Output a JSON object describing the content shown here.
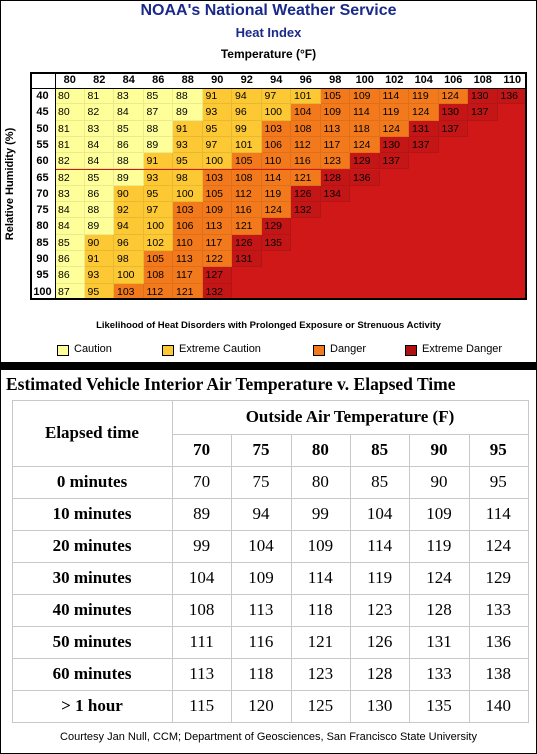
{
  "heat_index": {
    "title": "NOAA's National Weather Service",
    "subtitle": "Heat Index",
    "axis_label": "Temperature (°F)",
    "y_label": "Relative Humidity (%)",
    "temperatures": [
      80,
      82,
      84,
      86,
      88,
      90,
      92,
      94,
      96,
      98,
      100,
      102,
      104,
      106,
      108,
      110
    ],
    "background": "#d01818",
    "rows": [
      {
        "humidity": 40,
        "values": [
          80,
          81,
          83,
          85,
          88,
          91,
          94,
          97,
          101,
          105,
          109,
          114,
          119,
          124,
          130,
          136
        ],
        "colors": [
          "#ffff99",
          "#ffff99",
          "#ffff99",
          "#ffff99",
          "#ffff99",
          "#fcc834",
          "#fcc834",
          "#fcc834",
          "#fcc834",
          "#f27a1c",
          "#f27a1c",
          "#f27a1c",
          "#f27a1c",
          "#f27a1c",
          "#c41616",
          "#c41616"
        ]
      },
      {
        "humidity": 45,
        "values": [
          80,
          82,
          84,
          87,
          89,
          93,
          96,
          100,
          104,
          109,
          114,
          119,
          124,
          130,
          137
        ],
        "colors": [
          "#ffff99",
          "#ffff99",
          "#ffff99",
          "#ffff99",
          "#ffff99",
          "#fcc834",
          "#fcc834",
          "#fcc834",
          "#f27a1c",
          "#f27a1c",
          "#f27a1c",
          "#f27a1c",
          "#f27a1c",
          "#c41616",
          "#c41616"
        ]
      },
      {
        "humidity": 50,
        "values": [
          81,
          83,
          85,
          88,
          91,
          95,
          99,
          103,
          108,
          113,
          118,
          124,
          131,
          137
        ],
        "colors": [
          "#ffff99",
          "#ffff99",
          "#ffff99",
          "#ffff99",
          "#fcc834",
          "#fcc834",
          "#fcc834",
          "#f27a1c",
          "#f27a1c",
          "#f27a1c",
          "#f27a1c",
          "#f27a1c",
          "#c41616",
          "#c41616"
        ]
      },
      {
        "humidity": 55,
        "values": [
          81,
          84,
          86,
          89,
          93,
          97,
          101,
          106,
          112,
          117,
          124,
          130,
          137
        ],
        "colors": [
          "#ffff99",
          "#ffff99",
          "#ffff99",
          "#ffff99",
          "#fcc834",
          "#fcc834",
          "#fcc834",
          "#f27a1c",
          "#f27a1c",
          "#f27a1c",
          "#f27a1c",
          "#c41616",
          "#c41616"
        ]
      },
      {
        "humidity": 60,
        "values": [
          82,
          84,
          88,
          91,
          95,
          100,
          105,
          110,
          116,
          123,
          129,
          137
        ],
        "colors": [
          "#ffff99",
          "#ffff99",
          "#ffff99",
          "#fcc834",
          "#fcc834",
          "#fcc834",
          "#f27a1c",
          "#f27a1c",
          "#f27a1c",
          "#f27a1c",
          "#c41616",
          "#c41616"
        ]
      },
      {
        "humidity": 65,
        "values": [
          82,
          85,
          89,
          93,
          98,
          103,
          108,
          114,
          121,
          128,
          136
        ],
        "colors": [
          "#ffff99",
          "#ffff99",
          "#ffff99",
          "#fcc834",
          "#fcc834",
          "#f27a1c",
          "#f27a1c",
          "#f27a1c",
          "#f27a1c",
          "#c41616",
          "#c41616"
        ]
      },
      {
        "humidity": 70,
        "values": [
          83,
          86,
          90,
          95,
          100,
          105,
          112,
          119,
          126,
          134
        ],
        "colors": [
          "#ffff99",
          "#ffff99",
          "#fcc834",
          "#fcc834",
          "#fcc834",
          "#f27a1c",
          "#f27a1c",
          "#f27a1c",
          "#c41616",
          "#c41616"
        ]
      },
      {
        "humidity": 75,
        "values": [
          84,
          88,
          92,
          97,
          103,
          109,
          116,
          124,
          132
        ],
        "colors": [
          "#ffff99",
          "#ffff99",
          "#fcc834",
          "#fcc834",
          "#f27a1c",
          "#f27a1c",
          "#f27a1c",
          "#f27a1c",
          "#c41616"
        ]
      },
      {
        "humidity": 80,
        "values": [
          84,
          89,
          94,
          100,
          106,
          113,
          121,
          129
        ],
        "colors": [
          "#ffff99",
          "#ffff99",
          "#fcc834",
          "#fcc834",
          "#f27a1c",
          "#f27a1c",
          "#f27a1c",
          "#c41616"
        ]
      },
      {
        "humidity": 85,
        "values": [
          85,
          90,
          96,
          102,
          110,
          117,
          126,
          135
        ],
        "colors": [
          "#ffff99",
          "#fcc834",
          "#fcc834",
          "#fcc834",
          "#f27a1c",
          "#f27a1c",
          "#c41616",
          "#c41616"
        ]
      },
      {
        "humidity": 90,
        "values": [
          86,
          91,
          98,
          105,
          113,
          122,
          131
        ],
        "colors": [
          "#ffff99",
          "#fcc834",
          "#fcc834",
          "#f27a1c",
          "#f27a1c",
          "#f27a1c",
          "#c41616"
        ]
      },
      {
        "humidity": 95,
        "values": [
          86,
          93,
          100,
          108,
          117,
          127
        ],
        "colors": [
          "#ffff99",
          "#fcc834",
          "#fcc834",
          "#f27a1c",
          "#f27a1c",
          "#c41616"
        ]
      },
      {
        "humidity": 100,
        "values": [
          87,
          95,
          103,
          112,
          121,
          132
        ],
        "colors": [
          "#ffff99",
          "#fcc834",
          "#f27a1c",
          "#f27a1c",
          "#f27a1c",
          "#c41616"
        ]
      }
    ],
    "note": "Likelihood of Heat Disorders with Prolonged Exposure or Strenuous Activity",
    "legend": [
      {
        "label": "Caution",
        "color": "#ffff99"
      },
      {
        "label": "Extreme Caution",
        "color": "#fcc834"
      },
      {
        "label": "Danger",
        "color": "#f27a1c"
      },
      {
        "label": "Extreme Danger",
        "color": "#b01010"
      }
    ]
  },
  "vehicle": {
    "title": "Estimated Vehicle Interior Air Temperature v. Elapsed Time",
    "row_header": "Elapsed time",
    "column_group": "Outside Air Temperature (F)",
    "temperatures": [
      70,
      75,
      80,
      85,
      90,
      95
    ],
    "rows": [
      {
        "label": "0 minutes",
        "values": [
          70,
          75,
          80,
          85,
          90,
          95
        ]
      },
      {
        "label": "10 minutes",
        "values": [
          89,
          94,
          99,
          104,
          109,
          114
        ]
      },
      {
        "label": "20 minutes",
        "values": [
          99,
          104,
          109,
          114,
          119,
          124
        ]
      },
      {
        "label": "30 minutes",
        "values": [
          104,
          109,
          114,
          119,
          124,
          129
        ]
      },
      {
        "label": "40 minutes",
        "values": [
          108,
          113,
          118,
          123,
          128,
          133
        ]
      },
      {
        "label": "50 minutes",
        "values": [
          111,
          116,
          121,
          126,
          131,
          136
        ]
      },
      {
        "label": "60 minutes",
        "values": [
          113,
          118,
          123,
          128,
          133,
          138
        ]
      },
      {
        "label": "> 1 hour",
        "values": [
          115,
          120,
          125,
          130,
          135,
          140
        ]
      }
    ]
  },
  "credit": "Courtesy Jan Null, CCM; Department of Geosciences, San Francisco State University"
}
